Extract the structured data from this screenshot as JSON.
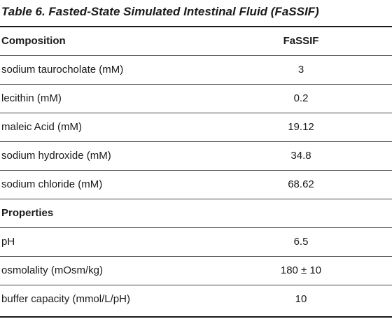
{
  "caption": "Table 6. Fasted-State Simulated Intestinal Fluid (FaSSIF)",
  "table": {
    "header": {
      "label": "Composition",
      "value": "FaSSIF"
    },
    "composition_rows": [
      {
        "label": "sodium taurocholate (mM)",
        "value": "3"
      },
      {
        "label": "lecithin (mM)",
        "value": "0.2"
      },
      {
        "label": "maleic Acid (mM)",
        "value": "19.12"
      },
      {
        "label": "sodium hydroxide (mM)",
        "value": "34.8"
      },
      {
        "label": "sodium chloride (mM)",
        "value": "68.62"
      }
    ],
    "properties_heading": "Properties",
    "property_rows": [
      {
        "label": "pH",
        "value": "6.5"
      },
      {
        "label": "osmolality (mOsm/kg)",
        "value": "180 ± 10"
      },
      {
        "label": "buffer capacity (mmol/L/pH)",
        "value": "10"
      }
    ]
  }
}
